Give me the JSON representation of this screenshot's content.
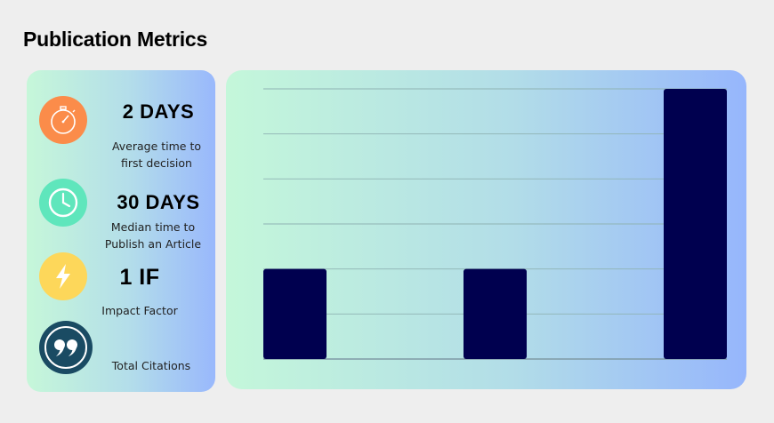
{
  "page": {
    "title": "Publication Metrics"
  },
  "stats": [
    {
      "value": "2 DAYS",
      "label_line1": "Average time to",
      "label_line2": "first decision",
      "icon": "stopwatch-icon",
      "icon_color": "#fb8c4a"
    },
    {
      "value": "30 DAYS",
      "label_line1": "Median time to",
      "label_line2": "Publish an Article",
      "icon": "clock-icon",
      "icon_color": "#5fe6bc"
    },
    {
      "value": "1 IF",
      "label_line1": "Impact Factor",
      "label_line2": "",
      "icon": "lightning-icon",
      "icon_color": "#fdd75a"
    },
    {
      "value": "",
      "label_line1": "Total Citations",
      "label_line2": "",
      "icon": "quote-icon",
      "icon_color": "#1a4b63"
    }
  ],
  "chart_data": {
    "type": "bar",
    "categories": [
      "",
      "",
      ""
    ],
    "values": [
      1,
      1,
      3
    ],
    "ylim": [
      0,
      3
    ],
    "grid": true,
    "bar_color": "#00004f",
    "title": "",
    "xlabel": "",
    "ylabel": ""
  }
}
